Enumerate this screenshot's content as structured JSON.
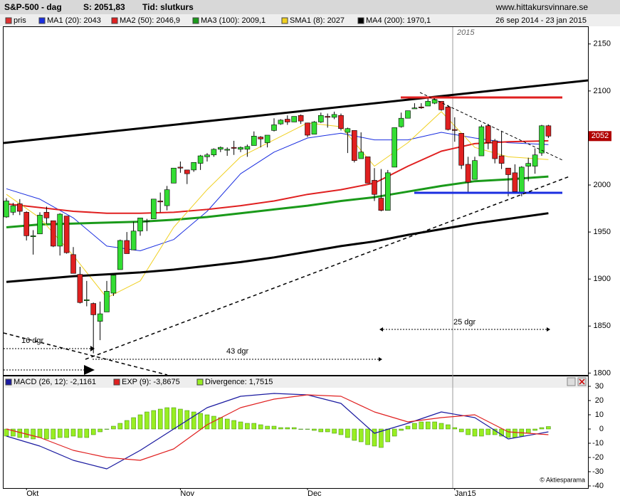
{
  "chart_data": [
    {
      "type": "candlestick",
      "title": "S&P-500 - dag",
      "subtitle": "S: 2051,83",
      "note": "Tid: slutkurs",
      "source": "www.hittakursvinnare.se",
      "date_range": "26 sep 2014 - 23 jan 2015",
      "year_marker": "2015",
      "name": "pris",
      "color": "#e03030",
      "up_color": "#33dd33",
      "down_color": "#e02020",
      "categories": [
        null,
        null,
        null,
        "Okt",
        null,
        null,
        null,
        null,
        null,
        null,
        null,
        null,
        null,
        null,
        null,
        null,
        null,
        null,
        null,
        null,
        null,
        null,
        null,
        null,
        null,
        null,
        "Nov",
        null,
        null,
        null,
        null,
        null,
        null,
        null,
        null,
        null,
        null,
        null,
        null,
        null,
        null,
        null,
        null,
        null,
        null,
        "Dec",
        null,
        null,
        null,
        null,
        null,
        null,
        null,
        null,
        null,
        null,
        null,
        null,
        null,
        null,
        null,
        null,
        null,
        null,
        null,
        null,
        null,
        "Jan15",
        null,
        null,
        null,
        null,
        null,
        null,
        null,
        null,
        null,
        null,
        null,
        null,
        null,
        null
      ],
      "ohlc": [
        [
          1966,
          1986,
          1965,
          1983
        ],
        [
          1971,
          1981,
          1968,
          1978
        ],
        [
          1980,
          1985,
          1968,
          1972
        ],
        [
          1971,
          1972,
          1941,
          1946
        ],
        [
          1945,
          1952,
          1926,
          1946
        ],
        [
          1948,
          1971,
          1948,
          1968
        ],
        [
          1971,
          1977,
          1959,
          1965
        ],
        [
          1962,
          1962,
          1934,
          1935
        ],
        [
          1935,
          1970,
          1925,
          1969
        ],
        [
          1967,
          1967,
          1927,
          1928
        ],
        [
          1926,
          1934,
          1906,
          1906
        ],
        [
          1905,
          1913,
          1874,
          1875
        ],
        [
          1877,
          1898,
          1871,
          1878
        ],
        [
          1874,
          1875,
          1821,
          1862
        ],
        [
          1855,
          1876,
          1835,
          1863
        ],
        [
          1865,
          1898,
          1865,
          1887
        ],
        [
          1885,
          1905,
          1882,
          1904
        ],
        [
          1910,
          1942,
          1910,
          1941
        ],
        [
          1941,
          1950,
          1927,
          1927
        ],
        [
          1931,
          1961,
          1931,
          1951
        ],
        [
          1951,
          1965,
          1946,
          1965
        ],
        [
          1962,
          1964,
          1951,
          1962
        ],
        [
          1964,
          1985,
          1964,
          1985
        ],
        [
          1983,
          1992,
          1971,
          1982
        ],
        [
          1978,
          1999,
          1973,
          1995
        ],
        [
          2002,
          2018,
          2002,
          2018
        ],
        [
          2019,
          2025,
          2013,
          2018
        ],
        [
          2016,
          2016,
          2001,
          2012
        ],
        [
          2016,
          2024,
          2014,
          2024
        ],
        [
          2023,
          2032,
          2016,
          2031
        ],
        [
          2030,
          2034,
          2025,
          2032
        ],
        [
          2032,
          2039,
          2030,
          2038
        ],
        [
          2038,
          2041,
          2035,
          2040
        ],
        [
          2037,
          2040,
          2031,
          2038
        ],
        [
          2040,
          2047,
          2032,
          2039
        ],
        [
          2038,
          2041,
          2035,
          2040
        ],
        [
          2038,
          2043,
          2030,
          2041
        ],
        [
          2042,
          2057,
          2042,
          2052
        ],
        [
          2051,
          2052,
          2040,
          2049
        ],
        [
          2045,
          2053,
          2040,
          2053
        ],
        [
          2058,
          2071,
          2057,
          2064
        ],
        [
          2065,
          2070,
          2064,
          2069
        ],
        [
          2070,
          2074,
          2064,
          2067
        ],
        [
          2067,
          2073,
          2067,
          2073
        ],
        [
          2074,
          2075,
          2065,
          2068
        ],
        [
          2066,
          2066,
          2051,
          2053
        ],
        [
          2054,
          2068,
          2054,
          2067
        ],
        [
          2067,
          2077,
          2066,
          2074
        ],
        [
          2073,
          2076,
          2061,
          2072
        ],
        [
          2072,
          2078,
          2070,
          2075
        ],
        [
          2074,
          2076,
          2058,
          2060
        ],
        [
          2056,
          2061,
          2034,
          2060
        ],
        [
          2058,
          2058,
          2024,
          2026
        ],
        [
          2028,
          2056,
          2028,
          2035
        ],
        [
          2030,
          2030,
          2002,
          2002
        ],
        [
          2005,
          2018,
          1983,
          1990
        ],
        [
          1986,
          2017,
          1972,
          1973
        ],
        [
          1973,
          2016,
          1973,
          2013
        ],
        [
          2019,
          2061,
          2019,
          2061
        ],
        [
          2062,
          2077,
          2061,
          2071
        ],
        [
          2071,
          2079,
          2071,
          2079
        ],
        [
          2081,
          2087,
          2081,
          2082
        ],
        [
          2083,
          2087,
          2081,
          2082
        ],
        [
          2084,
          2093,
          2084,
          2089
        ],
        [
          2087,
          2094,
          2086,
          2091
        ],
        [
          2089,
          2089,
          2079,
          2080
        ],
        [
          2083,
          2085,
          2058,
          2059
        ],
        [
          2059,
          2072,
          2046,
          2058
        ],
        [
          2055,
          2055,
          2017,
          2021
        ],
        [
          2022,
          2030,
          1992,
          2003
        ],
        [
          2006,
          2030,
          2006,
          2026
        ],
        [
          2031,
          2064,
          2031,
          2062
        ],
        [
          2063,
          2065,
          2038,
          2045
        ],
        [
          2047,
          2049,
          2023,
          2028
        ],
        [
          2031,
          2057,
          2017,
          2023
        ],
        [
          2018,
          2018,
          1988,
          2011
        ],
        [
          2013,
          2022,
          1992,
          1993
        ],
        [
          1992,
          2020,
          1988,
          2019
        ],
        [
          2020,
          2029,
          2004,
          2023
        ],
        [
          2020,
          2039,
          2012,
          2032
        ],
        [
          2034,
          2064,
          2031,
          2063
        ],
        [
          2063,
          2064,
          2050,
          2052
        ]
      ],
      "x": [
        0,
        5,
        10,
        15,
        20,
        25,
        30,
        35,
        40,
        45,
        50,
        55,
        60,
        65,
        70,
        75,
        81
      ],
      "series": [
        {
          "name": "MA1 (20): 2043",
          "color": "#1a2ee0",
          "width": 1,
          "values": [
            1996,
            1985,
            1965,
            1935,
            1930,
            1942,
            1972,
            2012,
            2035,
            2050,
            2055,
            2048,
            2048,
            2056,
            2050,
            2045,
            2043
          ]
        },
        {
          "name": "MA2 (50): 2046,9",
          "color": "#e02020",
          "width": 2,
          "values": [
            1980,
            1976,
            1972,
            1970,
            1970,
            1971,
            1974,
            1978,
            1983,
            1990,
            1995,
            2002,
            2020,
            2036,
            2044,
            2046,
            2047
          ]
        },
        {
          "name": "MA3 (100): 2009,1",
          "color": "#1a9a1a",
          "width": 3,
          "values": [
            1955,
            1958,
            1959,
            1960,
            1961,
            1963,
            1966,
            1970,
            1974,
            1978,
            1983,
            1987,
            1993,
            1999,
            2004,
            2006,
            2009
          ]
        },
        {
          "name": "SMA1 (8): 2027",
          "color": "#f0d020",
          "width": 1,
          "values": [
            1990,
            1965,
            1925,
            1880,
            1898,
            1955,
            1995,
            2030,
            2048,
            2066,
            2062,
            2020,
            2045,
            2078,
            2040,
            2030,
            2027
          ]
        },
        {
          "name": "MA4 (200): 1970,1",
          "color": "#000000",
          "width": 3,
          "values": [
            1897,
            1900,
            1903,
            1905,
            1907,
            1910,
            1914,
            1918,
            1923,
            1929,
            1935,
            1940,
            1947,
            1953,
            1959,
            1964,
            1970
          ]
        }
      ],
      "annotations": [
        "16 dgr",
        "43 dgr",
        "25 dgr"
      ],
      "last_price": 2052,
      "ylim": [
        1798,
        2168
      ],
      "yticks": [
        1800,
        1850,
        1900,
        1950,
        2000,
        2050,
        2100,
        2150
      ]
    },
    {
      "type": "macd",
      "x": [
        0,
        5,
        10,
        15,
        20,
        25,
        30,
        35,
        40,
        45,
        50,
        55,
        60,
        65,
        70,
        75,
        81
      ],
      "series": [
        {
          "name": "MACD (26, 12): -2,1161",
          "color": "#1a1aa0",
          "values": [
            -5,
            -12,
            -22,
            -28,
            -15,
            0,
            15,
            23,
            25,
            24,
            18,
            -3,
            4,
            12,
            8,
            -7,
            -2
          ]
        },
        {
          "name": "EXP (9): -3,8675",
          "color": "#e02020",
          "values": [
            0,
            -6,
            -15,
            -20,
            -22,
            -14,
            3,
            15,
            21,
            24,
            23,
            12,
            5,
            8,
            10,
            -2,
            -4
          ]
        }
      ],
      "histogram": {
        "name": "Divergence: 1,7515",
        "color": "#99ee22",
        "values": [
          -5,
          -5,
          -6,
          -6,
          -7,
          -6,
          -7,
          -7,
          -6,
          -6,
          -5,
          -6,
          -6,
          -4,
          -2,
          0,
          2,
          4,
          6,
          8,
          10,
          12,
          13,
          14,
          15,
          15,
          14,
          13,
          12,
          11,
          10,
          9,
          8,
          7,
          6,
          5,
          4,
          4,
          3,
          2,
          2,
          1,
          1,
          1,
          0,
          0,
          -1,
          -2,
          -2,
          -3,
          -4,
          -6,
          -8,
          -9,
          -11,
          -12,
          -13,
          -9,
          -5,
          -1,
          2,
          4,
          5,
          5,
          5,
          4,
          3,
          1,
          -2,
          -4,
          -5,
          -5,
          -4,
          -4,
          -5,
          -6,
          -6,
          -5,
          -3,
          -1,
          1,
          1.75
        ]
      },
      "credit": "© Aktiesparama",
      "ylim": [
        -41.5,
        31.5
      ],
      "yticks": [
        30,
        20,
        10,
        0,
        -10,
        -20,
        -30,
        -40
      ]
    }
  ]
}
